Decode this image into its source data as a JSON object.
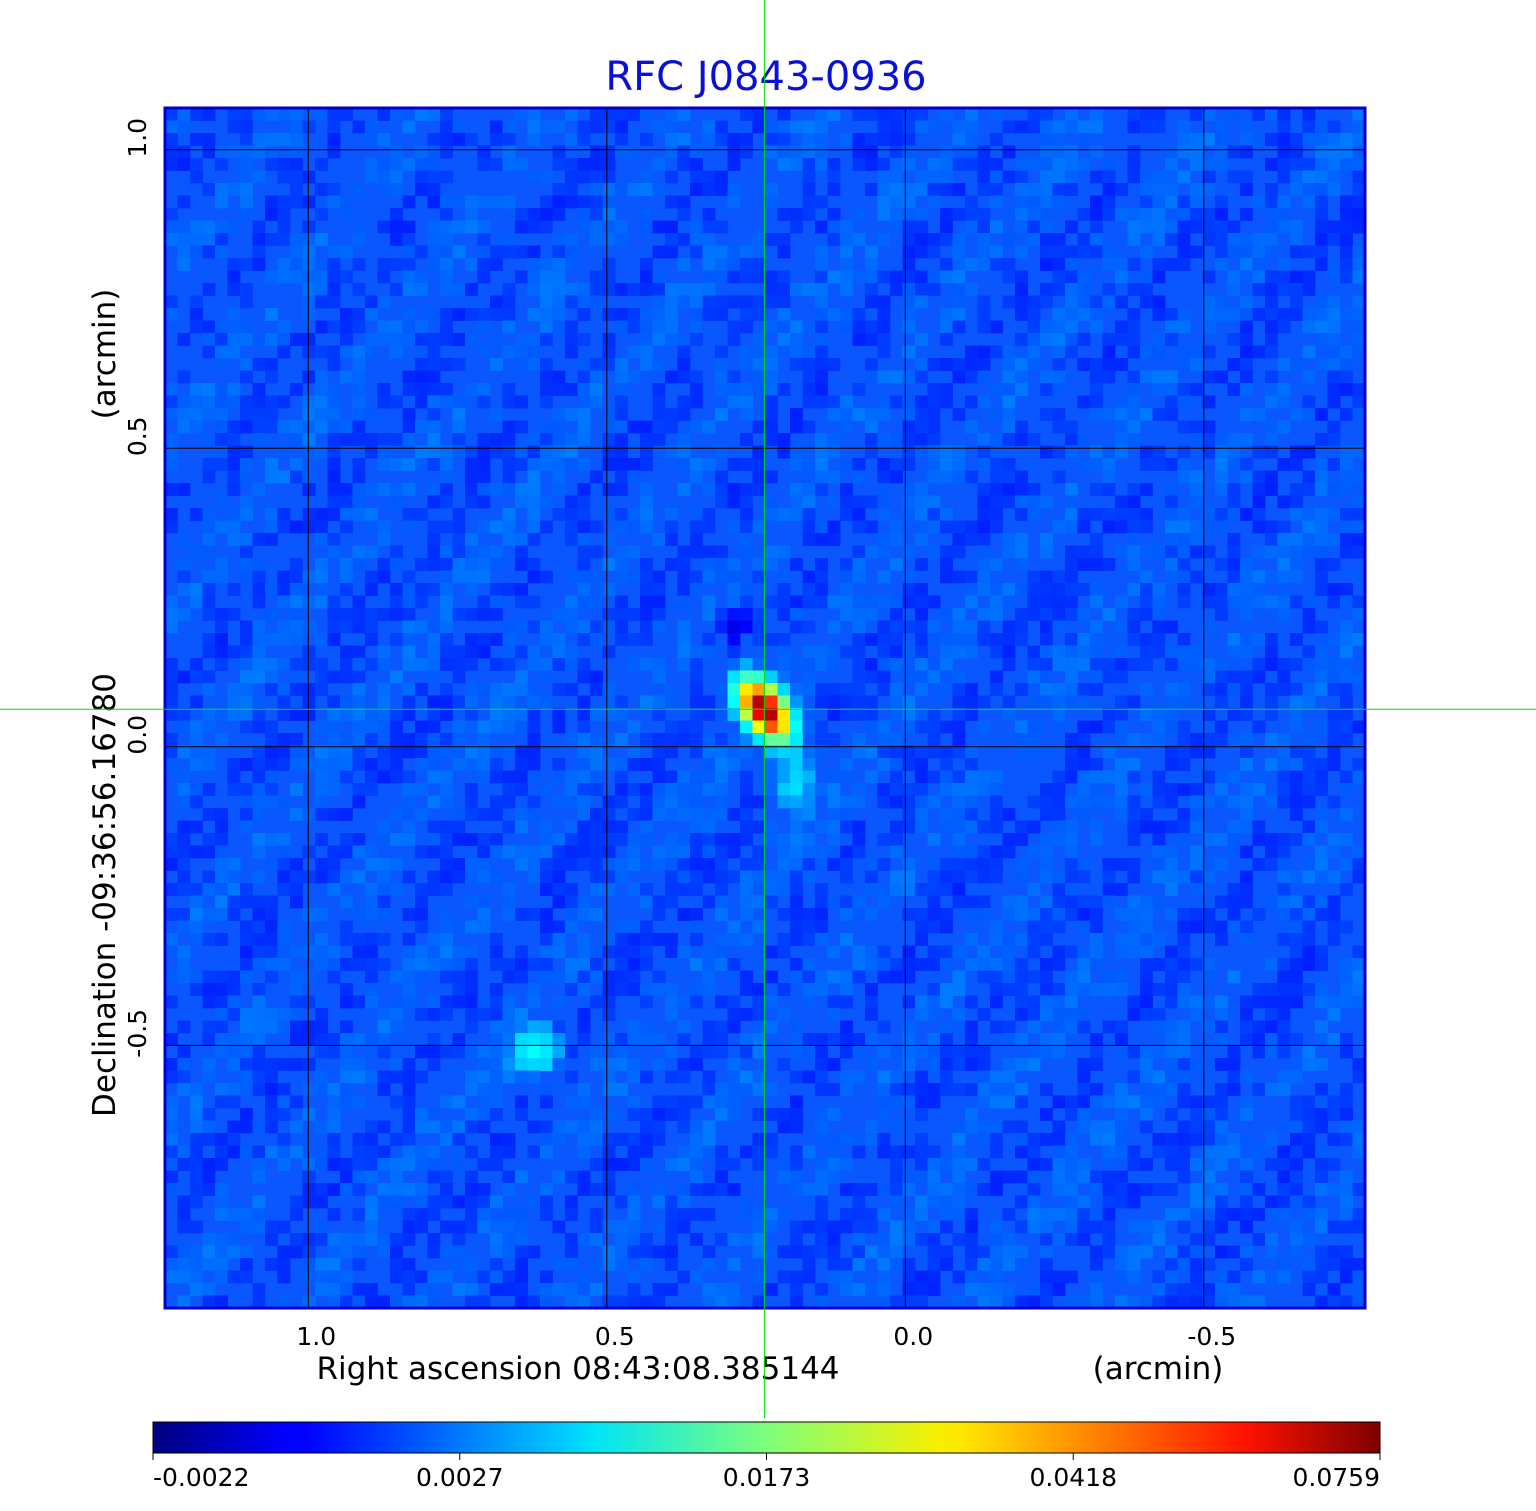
{
  "chart_data": {
    "type": "heatmap",
    "title": "RFC J0843-0936",
    "xlabel": "Right ascension  08:43:08.385144",
    "xunit": "(arcmin)",
    "ylabel": "Declination  -09:36:56.16780",
    "yunit": "(arcmin)",
    "x_range": [
      1.24,
      -0.77
    ],
    "y_range": [
      -0.94,
      1.07
    ],
    "x_ticks": [
      1.0,
      0.5,
      0.0,
      -0.5
    ],
    "x_tick_labels": [
      "1.0",
      "0.5",
      "0.0",
      "-0.5"
    ],
    "y_ticks": [
      1.0,
      0.5,
      0.0,
      -0.5
    ],
    "y_tick_labels": [
      "1.0",
      "0.5",
      "0.0",
      "-0.5"
    ],
    "grid": true,
    "crosshair": {
      "x": 0.236,
      "y": 0.063
    },
    "sources": [
      {
        "x": 0.236,
        "y": 0.063,
        "peak": 0.0759
      },
      {
        "x": 0.62,
        "y": -0.51,
        "peak": 0.006
      }
    ],
    "background_level": 0.0,
    "colorbar": {
      "colormap": "jet",
      "ticks": [
        -0.0022,
        0.0027,
        0.0173,
        0.0418,
        0.0759
      ],
      "tick_labels": [
        "-0.0022",
        "0.0027",
        "0.0173",
        "0.0418",
        "0.0759"
      ]
    }
  },
  "colors": {
    "title": "#0b10d6",
    "frame": "#0000cc",
    "grid": "#000000",
    "crosshair": "#00dd00",
    "background": "#0b57ff"
  }
}
